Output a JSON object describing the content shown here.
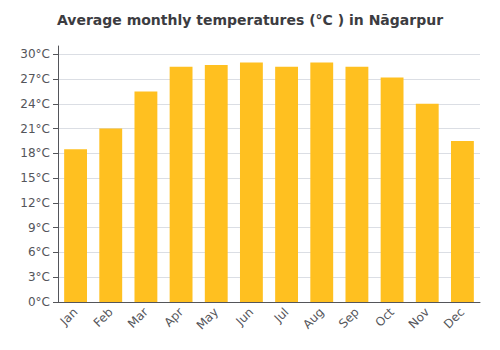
{
  "chart_data": {
    "type": "bar",
    "title": "Average monthly temperatures (°C ) in Nāgarpur",
    "categories": [
      "Jan",
      "Feb",
      "Mar",
      "Apr",
      "May",
      "Jun",
      "Jul",
      "Aug",
      "Sep",
      "Oct",
      "Nov",
      "Dec"
    ],
    "values": [
      18.5,
      21.0,
      25.5,
      28.5,
      28.7,
      29.0,
      28.5,
      29.0,
      28.5,
      27.2,
      24.0,
      19.5
    ],
    "color": "#FFC020",
    "ylim": [
      0,
      31
    ],
    "yticks": [
      {
        "value": 0,
        "label": "0°C"
      },
      {
        "value": 3,
        "label": "3°C"
      },
      {
        "value": 6,
        "label": "6°C"
      },
      {
        "value": 9,
        "label": "9°C"
      },
      {
        "value": 12,
        "label": "12°C"
      },
      {
        "value": 15,
        "label": "15°C"
      },
      {
        "value": 18,
        "label": "18°C"
      },
      {
        "value": 21,
        "label": "21°C"
      },
      {
        "value": 24,
        "label": "24°C"
      },
      {
        "value": 27,
        "label": "27°C"
      },
      {
        "value": 30,
        "label": "30°C"
      }
    ],
    "grid": true
  }
}
